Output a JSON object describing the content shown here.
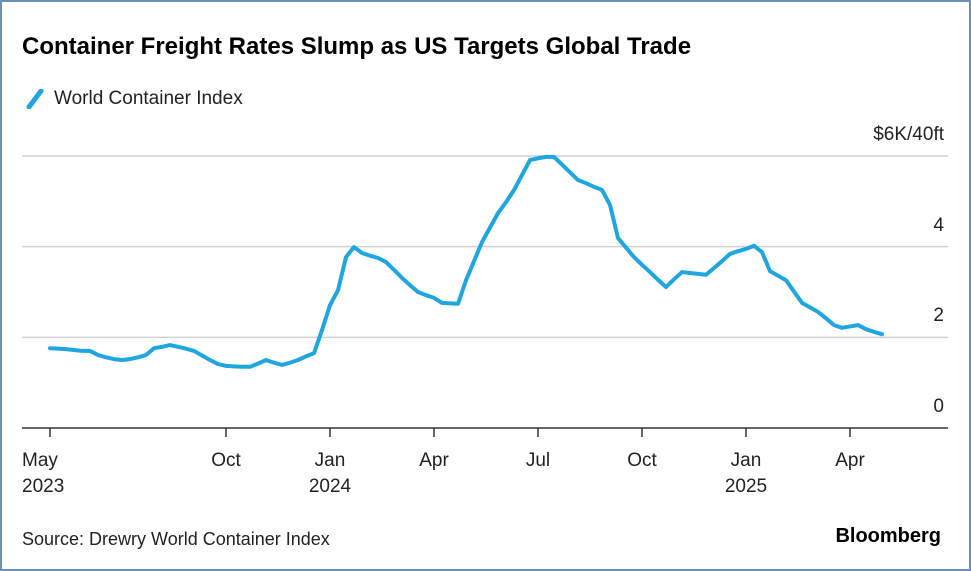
{
  "chart_data": {
    "type": "line",
    "title": "Container Freight Rates Slump as US Targets Global Trade",
    "source": "Source: Drewry World Container Index",
    "brand": "Bloomberg",
    "categories": [
      "May\n2023",
      null,
      null,
      null,
      null,
      null,
      null,
      null,
      null,
      null,
      null,
      null,
      null,
      null,
      null,
      null,
      null,
      null,
      null,
      null,
      null,
      null,
      "Oct",
      null,
      null,
      null,
      null,
      null,
      null,
      null,
      null,
      null,
      null,
      null,
      null,
      "Jan\n2024",
      null,
      null,
      null,
      null,
      null,
      null,
      null,
      null,
      null,
      null,
      null,
      null,
      "Apr",
      null,
      null,
      null,
      null,
      null,
      null,
      null,
      null,
      null,
      null,
      null,
      null,
      "Jul",
      null,
      null,
      null,
      null,
      null,
      null,
      null,
      null,
      null,
      null,
      null,
      null,
      "Oct",
      null,
      null,
      null,
      null,
      null,
      null,
      null,
      null,
      null,
      null,
      null,
      null,
      "Jan\n2025",
      null,
      null,
      null,
      null,
      null,
      null,
      null,
      null,
      null,
      null,
      null,
      null,
      "Apr",
      null,
      null,
      null,
      null
    ],
    "series": [
      {
        "name": "World Container Index",
        "color": "#1fa6e0",
        "values": [
          1.76,
          1.75,
          1.74,
          1.72,
          1.7,
          1.7,
          1.61,
          1.56,
          1.52,
          1.5,
          1.52,
          1.56,
          1.61,
          1.76,
          1.79,
          1.83,
          1.79,
          1.75,
          1.7,
          1.6,
          1.5,
          1.41,
          1.37,
          1.36,
          1.35,
          1.35,
          1.42,
          1.5,
          1.44,
          1.39,
          1.44,
          1.5,
          1.58,
          1.65,
          2.16,
          2.71,
          3.04,
          3.77,
          3.99,
          3.86,
          3.8,
          3.75,
          3.66,
          3.49,
          3.31,
          3.15,
          3.0,
          2.93,
          2.87,
          2.76,
          2.75,
          2.74,
          3.26,
          3.68,
          4.1,
          4.42,
          4.74,
          4.98,
          5.25,
          5.58,
          5.91,
          5.95,
          5.98,
          5.98,
          5.81,
          5.64,
          5.47,
          5.4,
          5.32,
          5.25,
          4.92,
          4.19,
          3.98,
          3.77,
          3.6,
          3.44,
          3.27,
          3.11,
          3.28,
          3.44,
          3.42,
          3.4,
          3.38,
          3.53,
          3.68,
          3.84,
          3.9,
          3.95,
          4.02,
          3.88,
          3.46,
          3.36,
          3.26,
          3.01,
          2.76,
          2.66,
          2.56,
          2.42,
          2.27,
          2.21,
          2.24,
          2.27,
          2.18,
          2.12,
          2.07
        ]
      }
    ],
    "ylim": [
      0,
      6
    ],
    "yticks": [
      0,
      2,
      4,
      {
        "value": 6,
        "label": "$6K/40ft"
      }
    ],
    "grid": true
  }
}
